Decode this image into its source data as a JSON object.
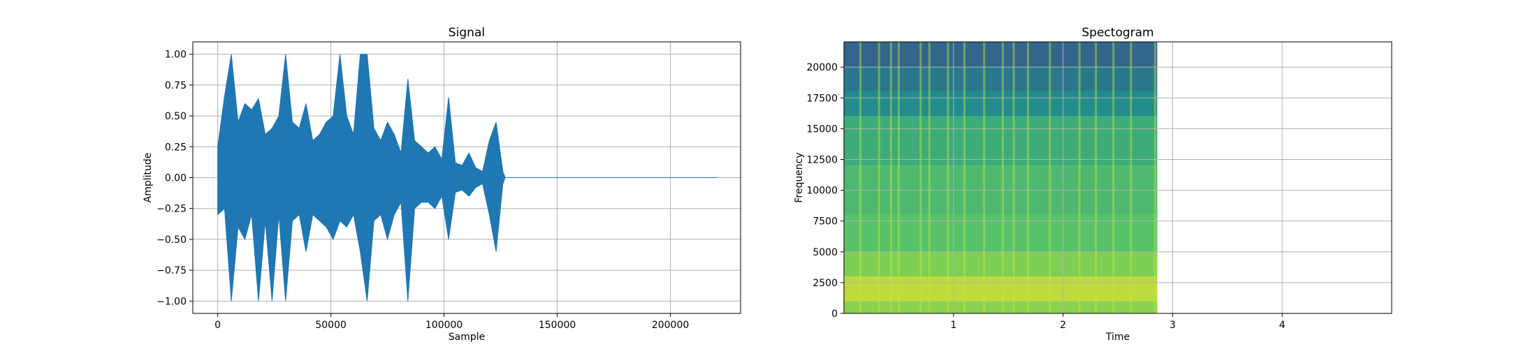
{
  "chart_data": [
    {
      "type": "line",
      "title": "Signal",
      "xlabel": "Sample",
      "ylabel": "Amplitude",
      "xlim": [
        -11000,
        231000
      ],
      "ylim": [
        -1.1,
        1.1
      ],
      "xticks": [
        0,
        50000,
        100000,
        150000,
        200000
      ],
      "xtick_labels": [
        "0",
        "50000",
        "100000",
        "150000",
        "200000"
      ],
      "yticks": [
        -1.0,
        -0.75,
        -0.5,
        -0.25,
        0.0,
        0.25,
        0.5,
        0.75,
        1.0
      ],
      "ytick_labels": [
        "−1.00",
        "−0.75",
        "−0.50",
        "−0.25",
        "0.00",
        "0.25",
        "0.50",
        "0.75",
        "1.00"
      ],
      "grid": true,
      "color": "#1f77b4",
      "series": [
        {
          "x": [
            0,
            3000,
            6000,
            9000,
            12000,
            15000,
            18000,
            21000,
            24000,
            27000,
            30000,
            33000,
            36000,
            39000,
            42000,
            45000,
            48000,
            51000,
            54000,
            57000,
            60000,
            63000,
            66000,
            69000,
            72000,
            75000,
            78000,
            81000,
            84000,
            87000,
            90000,
            93000,
            96000,
            99000,
            102000,
            105000,
            108000,
            111000,
            114000,
            117000,
            120000,
            123000,
            126000,
            127000,
            220500
          ],
          "upper": [
            0.25,
            0.66,
            1.0,
            0.45,
            0.6,
            0.55,
            0.64,
            0.35,
            0.4,
            0.5,
            1.0,
            0.45,
            0.4,
            0.6,
            0.3,
            0.35,
            0.45,
            0.5,
            1.0,
            0.5,
            0.35,
            1.0,
            1.0,
            0.4,
            0.3,
            0.45,
            0.35,
            0.2,
            0.8,
            0.3,
            0.25,
            0.2,
            0.25,
            0.15,
            0.65,
            0.12,
            0.1,
            0.2,
            0.08,
            0.05,
            0.3,
            0.45,
            0.05,
            0.0,
            0.0
          ],
          "lower": [
            -0.3,
            -0.25,
            -1.0,
            -0.4,
            -0.5,
            -0.3,
            -1.0,
            -0.35,
            -1.0,
            -0.3,
            -1.0,
            -0.35,
            -0.3,
            -0.6,
            -0.3,
            -0.35,
            -0.4,
            -0.5,
            -0.35,
            -0.4,
            -0.3,
            -0.6,
            -1.0,
            -0.35,
            -0.3,
            -0.5,
            -0.3,
            -0.2,
            -1.0,
            -0.25,
            -0.2,
            -0.2,
            -0.25,
            -0.15,
            -0.5,
            -0.12,
            -0.1,
            -0.15,
            -0.08,
            -0.05,
            -0.3,
            -0.6,
            -0.05,
            0.0,
            0.0
          ]
        }
      ]
    },
    {
      "type": "heatmap",
      "title": "Spectogram",
      "xlabel": "Time",
      "ylabel": "Frequency",
      "xlim": [
        0,
        5.0
      ],
      "ylim": [
        0,
        22050
      ],
      "xticks": [
        1,
        2,
        3,
        4
      ],
      "xtick_labels": [
        "1",
        "2",
        "3",
        "4"
      ],
      "yticks": [
        0,
        2500,
        5000,
        7500,
        10000,
        12500,
        15000,
        17500,
        20000
      ],
      "ytick_labels": [
        "0",
        "2500",
        "5000",
        "7500",
        "10000",
        "12500",
        "15000",
        "17500",
        "20000"
      ],
      "grid": true,
      "colormap": "viridis",
      "data_time_range": [
        0,
        2.86
      ],
      "frequency_bands": [
        {
          "from": 0,
          "to": 1000,
          "level": 0.82
        },
        {
          "from": 1000,
          "to": 3000,
          "level": 0.9
        },
        {
          "from": 3000,
          "to": 5000,
          "level": 0.8
        },
        {
          "from": 5000,
          "to": 8000,
          "level": 0.72
        },
        {
          "from": 8000,
          "to": 12000,
          "level": 0.68
        },
        {
          "from": 12000,
          "to": 16000,
          "level": 0.62
        },
        {
          "from": 16000,
          "to": 18000,
          "level": 0.48
        },
        {
          "from": 18000,
          "to": 20000,
          "level": 0.4
        },
        {
          "from": 20000,
          "to": 22050,
          "level": 0.33
        }
      ],
      "transient_times": [
        0.15,
        0.32,
        0.43,
        0.5,
        0.7,
        0.78,
        0.95,
        1.1,
        1.28,
        1.45,
        1.55,
        1.68,
        1.88,
        2.15,
        2.3,
        2.46,
        2.62,
        2.84
      ],
      "colors": {
        "low": "#3b528b",
        "mid": "#21918c",
        "high": "#5ec962",
        "peak": "#c8e020"
      }
    }
  ]
}
